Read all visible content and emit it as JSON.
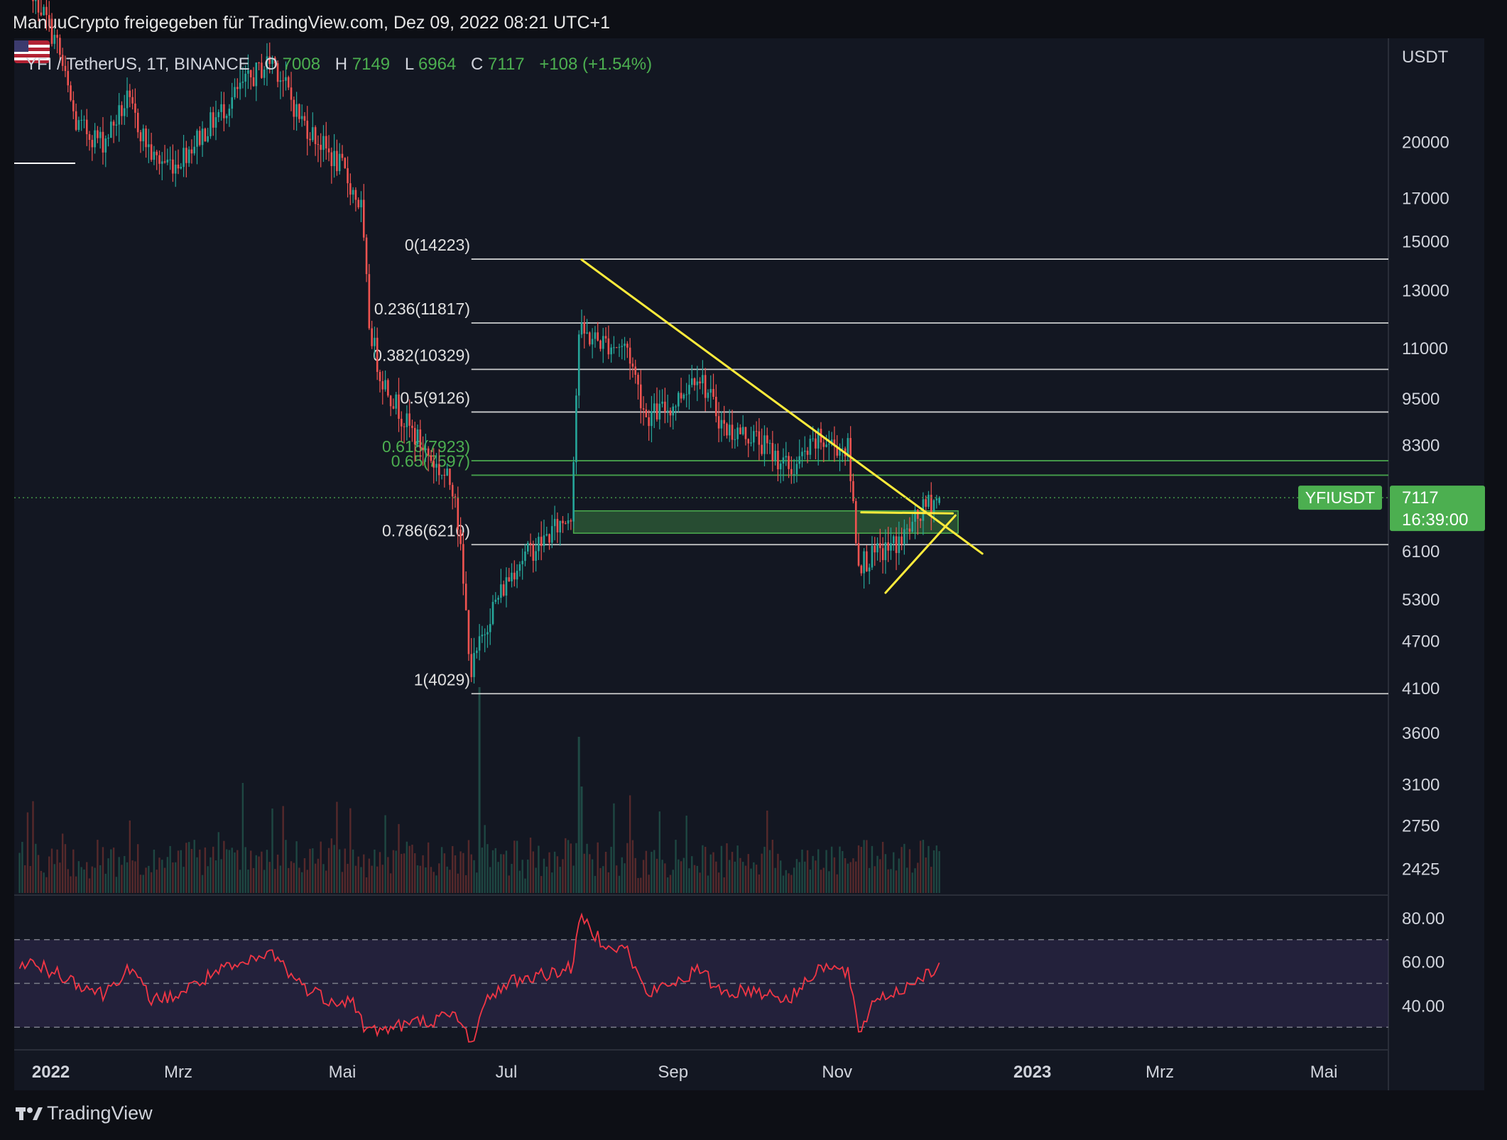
{
  "header": {
    "share_text": "ManuuCrypto freigegeben für TradingView.com, Dez 09, 2022 08:21 UTC+1"
  },
  "legend": {
    "symbol": "YFI / TetherUS, 1T, BINANCE",
    "o_label": "O",
    "o_value": "7008",
    "h_label": "H",
    "h_value": "7149",
    "l_label": "L",
    "l_value": "6964",
    "c_label": "C",
    "c_value": "7117",
    "change": "+108 (+1.54%)"
  },
  "footer": {
    "brand": "TradingView"
  },
  "colors": {
    "background": "#131722",
    "up": "#26a69a",
    "down": "#ef5350",
    "trendline": "#ffeb3b",
    "fib_white": "#e0e0e0",
    "fib_green": "#4caf50",
    "rsi": "#f23645",
    "price_label": "#4caf50"
  },
  "chart_data": [
    {
      "type": "candlestick",
      "title": "",
      "y_axis_unit": "USDT",
      "y_scale": "log",
      "ylim": [
        2250,
        27000
      ],
      "y_ticks": [
        "20000",
        "17000",
        "15000",
        "13000",
        "11000",
        "9500",
        "8300",
        "6100",
        "5300",
        "4700",
        "4100",
        "3600",
        "3100",
        "2750",
        "2425"
      ],
      "x_ticks": [
        {
          "label": "2022",
          "date": "2022-01-01"
        },
        {
          "label": "Mrz",
          "date": "2022-03-01"
        },
        {
          "label": "Mai",
          "date": "2022-05-01"
        },
        {
          "label": "Jul",
          "date": "2022-07-01"
        },
        {
          "label": "Sep",
          "date": "2022-09-01"
        },
        {
          "label": "Nov",
          "date": "2022-11-01"
        },
        {
          "label": "2023",
          "date": "2023-01-01"
        },
        {
          "label": "Mrz",
          "date": "2023-03-01"
        },
        {
          "label": "Mai",
          "date": "2023-05-01"
        }
      ],
      "xlim": [
        "2021-12-30",
        "2023-05-25"
      ],
      "price_path": [
        [
          "2022-01-01",
          34000
        ],
        [
          "2022-01-15",
          26500
        ],
        [
          "2022-01-22",
          21000
        ],
        [
          "2022-02-01",
          20000
        ],
        [
          "2022-02-10",
          22500
        ],
        [
          "2022-02-20",
          19000
        ],
        [
          "2022-02-28",
          18800
        ],
        [
          "2022-03-10",
          20500
        ],
        [
          "2022-03-25",
          23500
        ],
        [
          "2022-04-05",
          25500
        ],
        [
          "2022-04-15",
          21500
        ],
        [
          "2022-04-25",
          19500
        ],
        [
          "2022-05-01",
          18500
        ],
        [
          "2022-05-08",
          16500
        ],
        [
          "2022-05-11",
          11800
        ],
        [
          "2022-05-15",
          10200
        ],
        [
          "2022-05-25",
          8800
        ],
        [
          "2022-06-05",
          7800
        ],
        [
          "2022-06-12",
          7300
        ],
        [
          "2022-06-15",
          5500
        ],
        [
          "2022-06-18",
          4300
        ],
        [
          "2022-06-25",
          5100
        ],
        [
          "2022-07-05",
          5900
        ],
        [
          "2022-07-15",
          6300
        ],
        [
          "2022-07-25",
          6800
        ],
        [
          "2022-07-28",
          11500
        ],
        [
          "2022-08-05",
          11200
        ],
        [
          "2022-08-15",
          11000
        ],
        [
          "2022-08-22",
          9000
        ],
        [
          "2022-09-01",
          9300
        ],
        [
          "2022-09-10",
          10300
        ],
        [
          "2022-09-20",
          8700
        ],
        [
          "2022-10-01",
          8500
        ],
        [
          "2022-10-15",
          7700
        ],
        [
          "2022-10-25",
          8400
        ],
        [
          "2022-11-05",
          8200
        ],
        [
          "2022-11-09",
          5900
        ],
        [
          "2022-11-15",
          6000
        ],
        [
          "2022-11-25",
          6300
        ],
        [
          "2022-12-05",
          7000
        ],
        [
          "2022-12-09",
          7117
        ]
      ],
      "fibonacci_levels": [
        {
          "label": "0(14223)",
          "ratio": 0,
          "price": 14223,
          "color": "white"
        },
        {
          "label": "0.236(11817)",
          "ratio": 0.236,
          "price": 11817,
          "color": "white"
        },
        {
          "label": "0.382(10329)",
          "ratio": 0.382,
          "price": 10329,
          "color": "white"
        },
        {
          "label": "0.5(9126)",
          "ratio": 0.5,
          "price": 9126,
          "color": "white"
        },
        {
          "label": "0.618(7923)",
          "ratio": 0.618,
          "price": 7923,
          "color": "green"
        },
        {
          "label": "0.65(7597)",
          "ratio": 0.65,
          "price": 7597,
          "color": "green"
        },
        {
          "label": "0.786(6210)",
          "ratio": 0.786,
          "price": 6210,
          "color": "white"
        },
        {
          "label": "1(4029)",
          "ratio": 1,
          "price": 4029,
          "color": "white"
        }
      ],
      "fib_start_date": "2022-06-18",
      "trendlines": [
        {
          "name": "descending",
          "from": [
            "2022-07-29",
            14200
          ],
          "to": [
            "2022-12-25",
            6050
          ]
        },
        {
          "name": "flat",
          "from": [
            "2022-11-10",
            6820
          ],
          "to": [
            "2022-12-14",
            6800
          ]
        },
        {
          "name": "ascending",
          "from": [
            "2022-11-19",
            5400
          ],
          "to": [
            "2022-12-15",
            6760
          ]
        }
      ],
      "zone": {
        "from_date": "2022-07-26",
        "to_date": "2022-12-16",
        "top": 6850,
        "bottom": 6420
      },
      "last_price": {
        "symbol": "YFIUSDT",
        "value": "7117",
        "countdown": "16:39:00",
        "price": 7117
      }
    },
    {
      "type": "line",
      "name": "RSI",
      "ylim": [
        20,
        90
      ],
      "y_ticks": [
        "80.00",
        "60.00",
        "40.00"
      ],
      "bands": [
        70,
        50,
        30
      ],
      "points": [
        [
          "2022-01-01",
          60
        ],
        [
          "2022-01-15",
          55
        ],
        [
          "2022-02-01",
          45
        ],
        [
          "2022-02-10",
          57
        ],
        [
          "2022-02-20",
          42
        ],
        [
          "2022-03-01",
          45
        ],
        [
          "2022-03-15",
          55
        ],
        [
          "2022-03-25",
          58
        ],
        [
          "2022-04-05",
          64
        ],
        [
          "2022-04-15",
          50
        ],
        [
          "2022-04-25",
          43
        ],
        [
          "2022-05-05",
          42
        ],
        [
          "2022-05-10",
          28
        ],
        [
          "2022-05-20",
          30
        ],
        [
          "2022-06-01",
          33
        ],
        [
          "2022-06-12",
          35
        ],
        [
          "2022-06-18",
          24
        ],
        [
          "2022-06-25",
          45
        ],
        [
          "2022-07-05",
          52
        ],
        [
          "2022-07-15",
          54
        ],
        [
          "2022-07-25",
          57
        ],
        [
          "2022-07-29",
          80
        ],
        [
          "2022-08-05",
          70
        ],
        [
          "2022-08-15",
          65
        ],
        [
          "2022-08-22",
          45
        ],
        [
          "2022-09-01",
          50
        ],
        [
          "2022-09-10",
          56
        ],
        [
          "2022-09-20",
          46
        ],
        [
          "2022-10-01",
          47
        ],
        [
          "2022-10-15",
          43
        ],
        [
          "2022-10-25",
          58
        ],
        [
          "2022-11-05",
          55
        ],
        [
          "2022-11-09",
          27
        ],
        [
          "2022-11-15",
          43
        ],
        [
          "2022-11-25",
          47
        ],
        [
          "2022-12-05",
          56
        ],
        [
          "2022-12-09",
          56
        ]
      ]
    }
  ]
}
